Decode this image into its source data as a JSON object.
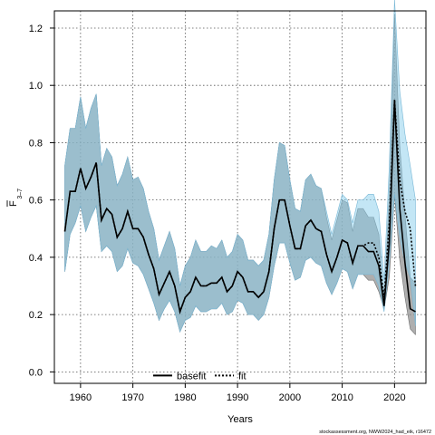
{
  "chart_data": {
    "type": "line",
    "xlabel": "Years",
    "ylabel_main": "F",
    "ylabel_sub": "3–7",
    "xlim": [
      1955,
      2026
    ],
    "ylim": [
      -0.04,
      1.26
    ],
    "x_ticks": [
      1960,
      1970,
      1980,
      1990,
      2000,
      2010,
      2020
    ],
    "y_ticks": [
      0.0,
      0.2,
      0.4,
      0.6,
      0.8,
      1.0,
      1.2
    ],
    "x_tick_labels": [
      "1960",
      "1970",
      "1980",
      "1990",
      "2000",
      "2010",
      "2020"
    ],
    "y_tick_labels": [
      "0.0",
      "0.2",
      "0.4",
      "0.6",
      "0.8",
      "1.0",
      "1.2"
    ],
    "grid": true,
    "legend": {
      "position": "bottom-center",
      "entries": [
        "basefit",
        "fit"
      ]
    },
    "colors": {
      "basefit_line": "#000000",
      "basefit_band": "#8c8c8c",
      "fit_line": "#000000",
      "fit_band": "#87ceeb",
      "overlap_band": "#9bb9cc"
    },
    "x": [
      1957,
      1958,
      1959,
      1960,
      1961,
      1962,
      1963,
      1964,
      1965,
      1966,
      1967,
      1968,
      1969,
      1970,
      1971,
      1972,
      1973,
      1974,
      1975,
      1976,
      1977,
      1978,
      1979,
      1980,
      1981,
      1982,
      1983,
      1984,
      1985,
      1986,
      1987,
      1988,
      1989,
      1990,
      1991,
      1992,
      1993,
      1994,
      1995,
      1996,
      1997,
      1998,
      1999,
      2000,
      2001,
      2002,
      2003,
      2004,
      2005,
      2006,
      2007,
      2008,
      2009,
      2010,
      2011,
      2012,
      2013,
      2014,
      2015,
      2016,
      2017,
      2018,
      2019,
      2020,
      2021,
      2022,
      2023,
      2024
    ],
    "series": [
      {
        "name": "basefit",
        "style": "solid",
        "values": [
          0.49,
          0.63,
          0.63,
          0.71,
          0.64,
          0.68,
          0.73,
          0.53,
          0.57,
          0.55,
          0.47,
          0.5,
          0.56,
          0.5,
          0.5,
          0.47,
          0.41,
          0.36,
          0.27,
          0.31,
          0.35,
          0.3,
          0.21,
          0.26,
          0.28,
          0.33,
          0.3,
          0.3,
          0.31,
          0.31,
          0.33,
          0.28,
          0.3,
          0.35,
          0.33,
          0.28,
          0.28,
          0.26,
          0.28,
          0.35,
          0.5,
          0.6,
          0.6,
          0.51,
          0.43,
          0.43,
          0.51,
          0.53,
          0.5,
          0.49,
          0.41,
          0.35,
          0.4,
          0.46,
          0.45,
          0.38,
          0.44,
          0.44,
          0.42,
          0.42,
          0.37,
          0.23,
          0.45,
          0.95,
          0.57,
          0.38,
          0.22,
          0.21
        ],
        "lower": [
          0.35,
          0.48,
          0.52,
          0.58,
          0.49,
          0.54,
          0.58,
          0.42,
          0.44,
          0.42,
          0.35,
          0.37,
          0.43,
          0.38,
          0.37,
          0.34,
          0.29,
          0.24,
          0.18,
          0.22,
          0.25,
          0.21,
          0.14,
          0.18,
          0.19,
          0.23,
          0.21,
          0.21,
          0.22,
          0.22,
          0.24,
          0.2,
          0.21,
          0.25,
          0.24,
          0.2,
          0.2,
          0.18,
          0.2,
          0.26,
          0.37,
          0.45,
          0.45,
          0.38,
          0.32,
          0.33,
          0.39,
          0.4,
          0.38,
          0.37,
          0.31,
          0.27,
          0.31,
          0.36,
          0.35,
          0.29,
          0.34,
          0.34,
          0.32,
          0.32,
          0.28,
          0.22,
          0.33,
          0.62,
          0.39,
          0.26,
          0.15,
          0.13
        ],
        "upper": [
          0.72,
          0.85,
          0.85,
          0.96,
          0.85,
          0.92,
          0.97,
          0.72,
          0.78,
          0.75,
          0.65,
          0.69,
          0.75,
          0.67,
          0.68,
          0.64,
          0.56,
          0.5,
          0.39,
          0.44,
          0.49,
          0.43,
          0.3,
          0.37,
          0.4,
          0.46,
          0.42,
          0.42,
          0.44,
          0.43,
          0.46,
          0.4,
          0.42,
          0.48,
          0.46,
          0.39,
          0.39,
          0.37,
          0.39,
          0.48,
          0.67,
          0.8,
          0.79,
          0.67,
          0.57,
          0.56,
          0.67,
          0.69,
          0.65,
          0.64,
          0.54,
          0.46,
          0.53,
          0.6,
          0.59,
          0.49,
          0.57,
          0.57,
          0.54,
          0.54,
          0.48,
          0.25,
          0.62,
          1.25,
          0.79,
          0.55,
          0.33,
          0.31
        ]
      },
      {
        "name": "fit",
        "style": "dotted",
        "values": [
          0.49,
          0.63,
          0.63,
          0.71,
          0.64,
          0.68,
          0.73,
          0.53,
          0.57,
          0.55,
          0.47,
          0.5,
          0.56,
          0.5,
          0.5,
          0.47,
          0.41,
          0.36,
          0.27,
          0.31,
          0.35,
          0.3,
          0.21,
          0.26,
          0.28,
          0.33,
          0.3,
          0.3,
          0.31,
          0.31,
          0.33,
          0.28,
          0.3,
          0.35,
          0.33,
          0.28,
          0.28,
          0.26,
          0.28,
          0.35,
          0.5,
          0.6,
          0.6,
          0.51,
          0.43,
          0.43,
          0.51,
          0.53,
          0.5,
          0.49,
          0.41,
          0.35,
          0.4,
          0.46,
          0.45,
          0.38,
          0.44,
          0.44,
          0.45,
          0.45,
          0.4,
          0.26,
          0.52,
          0.95,
          0.67,
          0.56,
          0.5,
          0.3
        ],
        "lower": [
          0.35,
          0.48,
          0.52,
          0.58,
          0.49,
          0.54,
          0.58,
          0.42,
          0.44,
          0.42,
          0.35,
          0.37,
          0.43,
          0.38,
          0.37,
          0.34,
          0.29,
          0.24,
          0.18,
          0.22,
          0.25,
          0.21,
          0.14,
          0.18,
          0.19,
          0.23,
          0.21,
          0.21,
          0.22,
          0.22,
          0.24,
          0.2,
          0.21,
          0.25,
          0.24,
          0.2,
          0.2,
          0.18,
          0.2,
          0.26,
          0.37,
          0.45,
          0.45,
          0.38,
          0.32,
          0.33,
          0.39,
          0.4,
          0.38,
          0.37,
          0.31,
          0.27,
          0.31,
          0.36,
          0.35,
          0.29,
          0.34,
          0.34,
          0.34,
          0.34,
          0.3,
          0.21,
          0.38,
          0.62,
          0.47,
          0.38,
          0.33,
          0.16
        ],
        "upper": [
          0.72,
          0.85,
          0.85,
          0.96,
          0.85,
          0.92,
          0.97,
          0.72,
          0.78,
          0.75,
          0.65,
          0.69,
          0.75,
          0.67,
          0.68,
          0.64,
          0.56,
          0.5,
          0.39,
          0.44,
          0.49,
          0.43,
          0.3,
          0.37,
          0.4,
          0.46,
          0.42,
          0.42,
          0.44,
          0.43,
          0.46,
          0.4,
          0.42,
          0.48,
          0.46,
          0.39,
          0.39,
          0.37,
          0.39,
          0.48,
          0.67,
          0.8,
          0.79,
          0.67,
          0.57,
          0.56,
          0.67,
          0.69,
          0.65,
          0.64,
          0.56,
          0.48,
          0.55,
          0.62,
          0.6,
          0.52,
          0.6,
          0.6,
          0.62,
          0.62,
          0.56,
          0.32,
          0.72,
          1.3,
          0.98,
          0.83,
          0.72,
          0.6
        ]
      }
    ]
  },
  "footer": "stockassessment.org, NWW2024_had_eik, r16472"
}
